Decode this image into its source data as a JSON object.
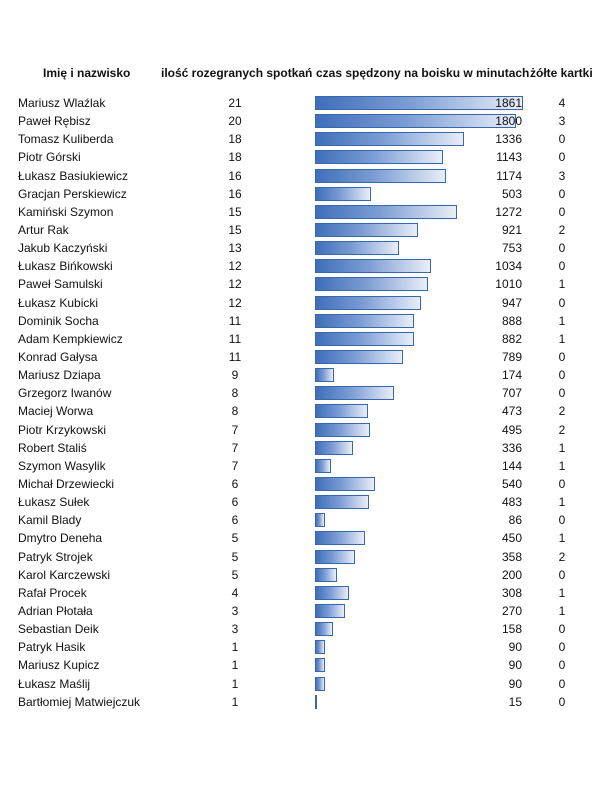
{
  "chart_data": {
    "type": "table",
    "columns": [
      "Imię i nazwisko",
      "ilość rozegranych spotkań",
      "czas spędzony na boisku w minutach",
      "żółte kartki"
    ],
    "bar_max": 1861,
    "rows": [
      {
        "name": "Mariusz Wlaźlak",
        "games": 21,
        "minutes": 1861,
        "cards": 4
      },
      {
        "name": "Paweł Rębisz",
        "games": 20,
        "minutes": 1800,
        "cards": 3
      },
      {
        "name": "Tomasz Kuliberda",
        "games": 18,
        "minutes": 1336,
        "cards": 0
      },
      {
        "name": "Piotr Górski",
        "games": 18,
        "minutes": 1143,
        "cards": 0
      },
      {
        "name": "Łukasz Basiukiewicz",
        "games": 16,
        "minutes": 1174,
        "cards": 3
      },
      {
        "name": "Gracjan Perskiewicz",
        "games": 16,
        "minutes": 503,
        "cards": 0
      },
      {
        "name": "Kamiński Szymon",
        "games": 15,
        "minutes": 1272,
        "cards": 0
      },
      {
        "name": "Artur Rak",
        "games": 15,
        "minutes": 921,
        "cards": 2
      },
      {
        "name": "Jakub Kaczyński",
        "games": 13,
        "minutes": 753,
        "cards": 0
      },
      {
        "name": "Łukasz Bińkowski",
        "games": 12,
        "minutes": 1034,
        "cards": 0
      },
      {
        "name": "Paweł Samulski",
        "games": 12,
        "minutes": 1010,
        "cards": 1
      },
      {
        "name": "Łukasz Kubicki",
        "games": 12,
        "minutes": 947,
        "cards": 0
      },
      {
        "name": "Dominik Socha",
        "games": 11,
        "minutes": 888,
        "cards": 1
      },
      {
        "name": "Adam Kempkiewicz",
        "games": 11,
        "minutes": 882,
        "cards": 1
      },
      {
        "name": "Konrad Gałysa",
        "games": 11,
        "minutes": 789,
        "cards": 0
      },
      {
        "name": "Mariusz Dziapa",
        "games": 9,
        "minutes": 174,
        "cards": 0
      },
      {
        "name": "Grzegorz Iwanów",
        "games": 8,
        "minutes": 707,
        "cards": 0
      },
      {
        "name": "Maciej Worwa",
        "games": 8,
        "minutes": 473,
        "cards": 2
      },
      {
        "name": "Piotr Krzykowski",
        "games": 7,
        "minutes": 495,
        "cards": 2
      },
      {
        "name": "Robert Staliś",
        "games": 7,
        "minutes": 336,
        "cards": 1
      },
      {
        "name": "Szymon Wasylik",
        "games": 7,
        "minutes": 144,
        "cards": 1
      },
      {
        "name": "Michał Drzewiecki",
        "games": 6,
        "minutes": 540,
        "cards": 0
      },
      {
        "name": "Łukasz Sułek",
        "games": 6,
        "minutes": 483,
        "cards": 1
      },
      {
        "name": "Kamil Blady",
        "games": 6,
        "minutes": 86,
        "cards": 0
      },
      {
        "name": "Dmytro Deneha",
        "games": 5,
        "minutes": 450,
        "cards": 1
      },
      {
        "name": "Patryk Strojek",
        "games": 5,
        "minutes": 358,
        "cards": 2
      },
      {
        "name": "Karol Karczewski",
        "games": 5,
        "minutes": 200,
        "cards": 0
      },
      {
        "name": "Rafał Procek",
        "games": 4,
        "minutes": 308,
        "cards": 1
      },
      {
        "name": "Adrian Płotała",
        "games": 3,
        "minutes": 270,
        "cards": 1
      },
      {
        "name": "Sebastian Deik",
        "games": 3,
        "minutes": 158,
        "cards": 0
      },
      {
        "name": "Patryk Hasik",
        "games": 1,
        "minutes": 90,
        "cards": 0
      },
      {
        "name": "Mariusz Kupicz",
        "games": 1,
        "minutes": 90,
        "cards": 0
      },
      {
        "name": "Łukasz Maślij",
        "games": 1,
        "minutes": 90,
        "cards": 0
      },
      {
        "name": "Bartłomiej Matwiejczuk",
        "games": 1,
        "minutes": 15,
        "cards": 0
      }
    ]
  }
}
